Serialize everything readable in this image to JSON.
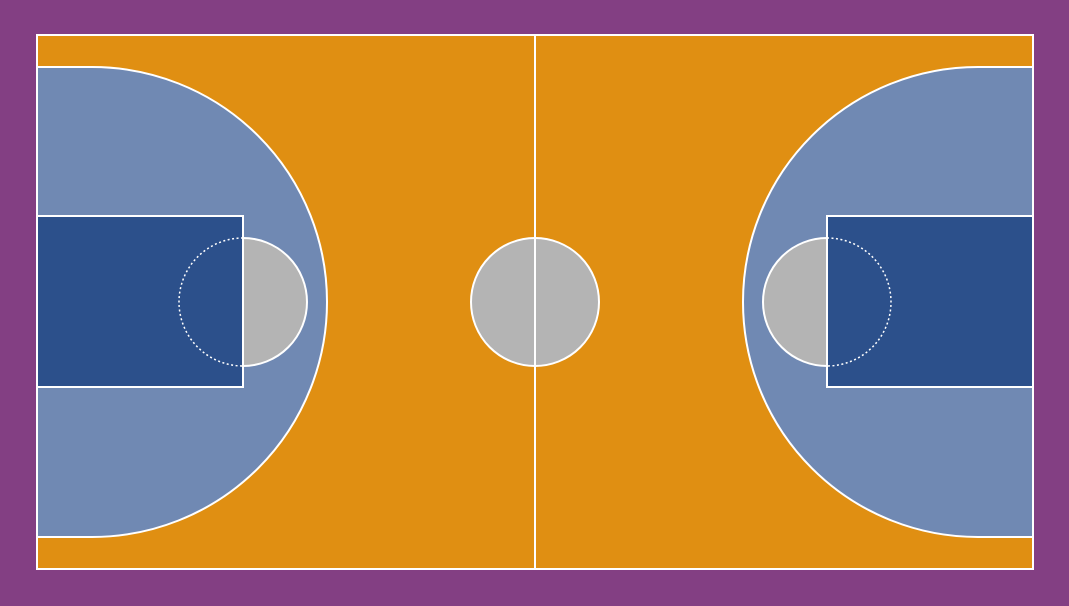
{
  "court": {
    "colors": {
      "surround": "#833F83",
      "floor": "#E08F12",
      "three_point_area": "#7089B3",
      "key": "#2C508B",
      "circle": "#B4B4B4",
      "line": "#FFFFFF"
    }
  }
}
